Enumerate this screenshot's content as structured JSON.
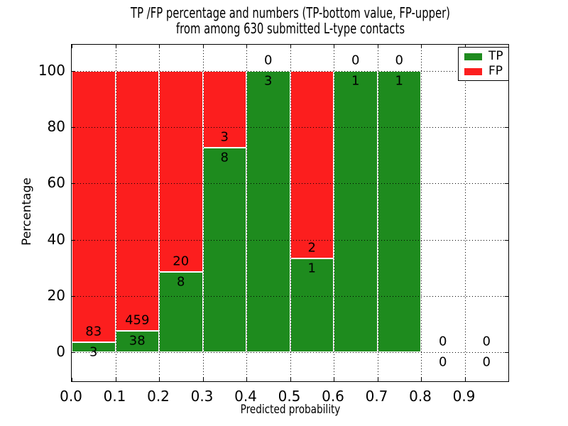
{
  "figure": {
    "title_line1": "TP /FP percentage and numbers (TP-bottom value, FP-upper)",
    "title_line2": "from among 630 submitted L-type contacts"
  },
  "chart_data": {
    "type": "bar",
    "variant": "stacked-percentage",
    "title": "TP /FP percentage and numbers (TP-bottom value, FP-upper)\nfrom among 630 submitted L-type contacts",
    "xlabel": "Predicted probability",
    "ylabel": "Percentage",
    "total_contacts": 630,
    "x": [
      0.0,
      0.1,
      0.2,
      0.3,
      0.4,
      0.5,
      0.6,
      0.7,
      0.8,
      0.9
    ],
    "bin_width": 0.1,
    "series": [
      {
        "name": "TP",
        "color": "#1e8b1e",
        "label_position": "bottom",
        "values": [
          3,
          38,
          8,
          8,
          3,
          1,
          1,
          1,
          0,
          0
        ]
      },
      {
        "name": "FP",
        "color": "#fc1e1e",
        "label_position": "upper",
        "values": [
          83,
          459,
          20,
          3,
          0,
          2,
          0,
          0,
          0,
          0
        ]
      }
    ],
    "tp_percent_per_bin": [
      3.49,
      7.65,
      28.57,
      72.73,
      100,
      33.33,
      100,
      100,
      null,
      null
    ],
    "xticks": [
      "0.0",
      "0.1",
      "0.2",
      "0.3",
      "0.4",
      "0.5",
      "0.6",
      "0.7",
      "0.8",
      "0.9"
    ],
    "yticks": [
      0,
      20,
      40,
      60,
      80,
      100
    ],
    "xlim": [
      0,
      1
    ],
    "ylim": [
      -10.3,
      109.3
    ],
    "grid": {
      "style": "dotted",
      "color": "#000000",
      "on": true
    },
    "bar_edge_color": "#ffffff",
    "legend": {
      "position": "upper-right",
      "entries": [
        {
          "label": "TP",
          "color": "#1e8b1e"
        },
        {
          "label": "FP",
          "color": "#fc1e1e"
        }
      ]
    }
  }
}
